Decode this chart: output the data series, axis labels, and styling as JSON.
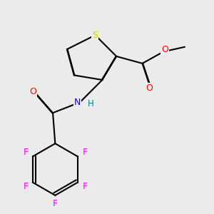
{
  "background_color": "#ebebeb",
  "atom_colors": {
    "S": "#cccc00",
    "O": "#ff0000",
    "N": "#0000ff",
    "F": "#ff00ff",
    "C": "#000000",
    "H": "#008080"
  },
  "bond_color": "#000000",
  "bond_width": 1.5
}
